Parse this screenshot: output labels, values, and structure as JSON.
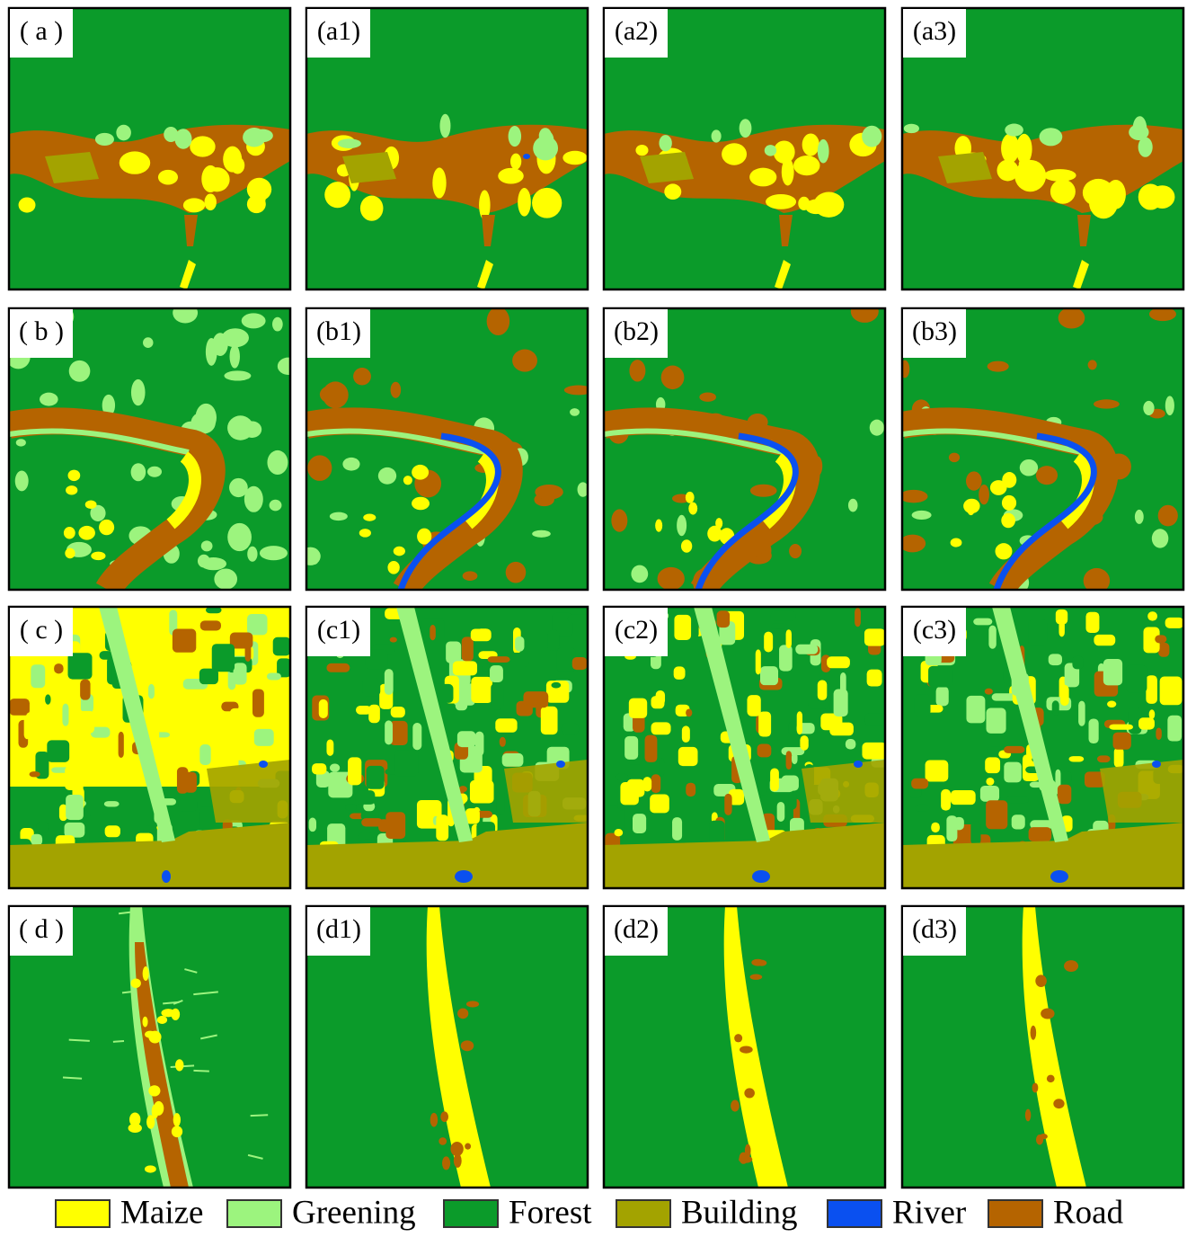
{
  "rows": [
    [
      "( a )",
      "(a1)",
      "(a2)",
      "(a3)"
    ],
    [
      "( b )",
      "(b1)",
      "(b2)",
      "(b3)"
    ],
    [
      "( c )",
      "(c1)",
      "(c2)",
      "(c3)"
    ],
    [
      "( d )",
      "(d1)",
      "(d2)",
      "(d3)"
    ]
  ],
  "legend": [
    {
      "name": "Maize",
      "color": "#ffff00"
    },
    {
      "name": "Greening",
      "color": "#9cf47e"
    },
    {
      "name": "Forest",
      "color": "#0b9b2a"
    },
    {
      "name": "Building",
      "color": "#a3a300"
    },
    {
      "name": "River",
      "color": "#0a50f0"
    },
    {
      "name": "Road",
      "color": "#b56400"
    }
  ]
}
